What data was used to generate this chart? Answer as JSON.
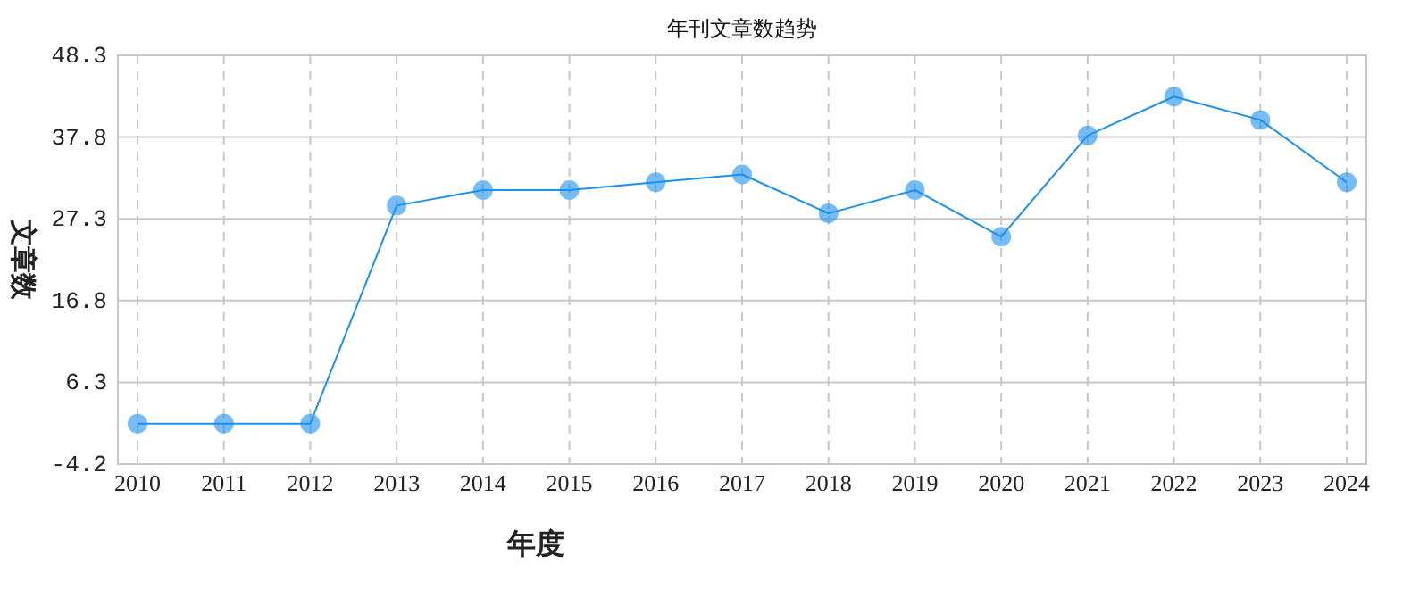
{
  "chart_data": {
    "type": "line",
    "title": "年刊文章数趋势",
    "xlabel": "年度",
    "ylabel": "文章数",
    "categories": [
      "2010",
      "2011",
      "2012",
      "2013",
      "2014",
      "2015",
      "2016",
      "2017",
      "2018",
      "2019",
      "2020",
      "2021",
      "2022",
      "2023",
      "2024"
    ],
    "series": [
      {
        "color": "#1a90f0",
        "values": [
          1,
          1,
          1,
          29,
          31,
          31,
          32,
          33,
          28,
          31,
          25,
          38,
          43,
          40,
          32
        ]
      }
    ],
    "ylim": [
      -4.2,
      48.3
    ],
    "yticks": [
      -4.2,
      6.3,
      16.8,
      27.3,
      37.8,
      48.3
    ],
    "grid": true,
    "marker": "circle",
    "line_style": "solid"
  }
}
